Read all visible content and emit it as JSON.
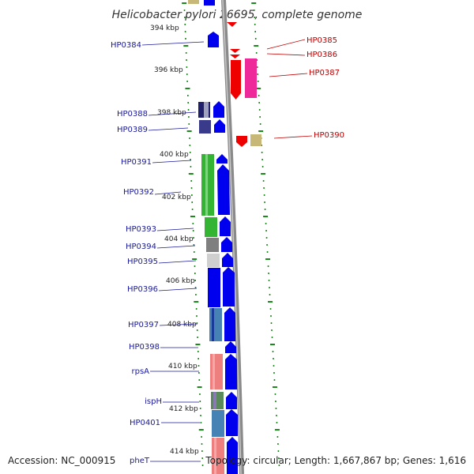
{
  "title": "Helicobacter pylori 26695, complete genome",
  "footer": {
    "accession": "Accession: NC_000915",
    "summary": "Topology: circular; Length: 1,667,867 bp; Genes: 1,616"
  },
  "kbp_labels": [
    "394 kbp",
    "396 kbp",
    "398 kbp",
    "400 kbp",
    "402 kbp",
    "404 kbp",
    "406 kbp",
    "408 kbp",
    "410 kbp",
    "412 kbp",
    "414 kbp"
  ],
  "left_genes": [
    "HP0384",
    "HP0388",
    "HP0389",
    "HP0391",
    "HP0392",
    "HP0393",
    "HP0394",
    "HP0395",
    "HP0396",
    "HP0397",
    "HP0398",
    "rpsA",
    "ispH",
    "HP0401",
    "pheT"
  ],
  "right_genes": [
    "HP0385",
    "HP0386",
    "HP0387",
    "HP0390"
  ],
  "colors": {
    "forward": "#0000ee",
    "reverse": "#ee0000",
    "magenta": "#ee2a9a",
    "green": "#33b533",
    "gray": "#7f7f7f",
    "lightgray": "#cfcfcf",
    "salmon": "#ee7f7f",
    "steelblue": "#4682b4",
    "olive": "#c8b878",
    "navy": "#3a3a8a",
    "tick": "#1a8a1a",
    "backbone": "#8a8a8a"
  }
}
